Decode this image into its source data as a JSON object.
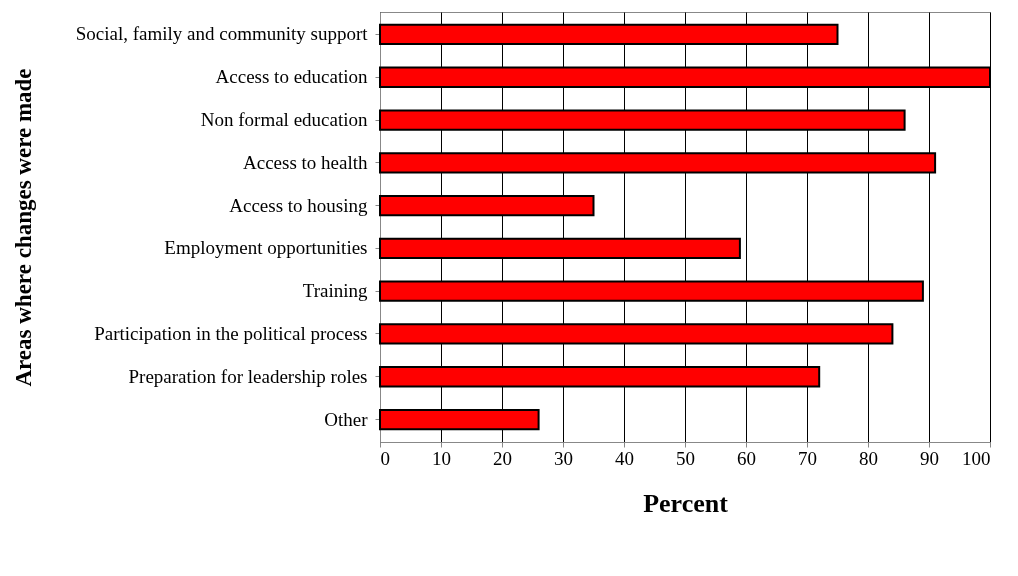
{
  "chart_data": {
    "type": "bar",
    "orientation": "horizontal",
    "xlabel": "Percent",
    "ylabel": "Areas where changes were made",
    "categories": [
      "Social, family and community support",
      "Access to education",
      "Non formal education",
      "Access to health",
      "Access to housing",
      "Employment opportunities",
      "Training",
      "Participation in the political process",
      "Preparation for leadership roles",
      "Other"
    ],
    "values": [
      75,
      100,
      86,
      91,
      35,
      59,
      89,
      84,
      72,
      26
    ],
    "color": "#ff0000",
    "xlim": [
      0,
      100
    ],
    "xticks": [
      0,
      10,
      20,
      30,
      40,
      50,
      60,
      70,
      80,
      90,
      100
    ],
    "grid": "x"
  }
}
